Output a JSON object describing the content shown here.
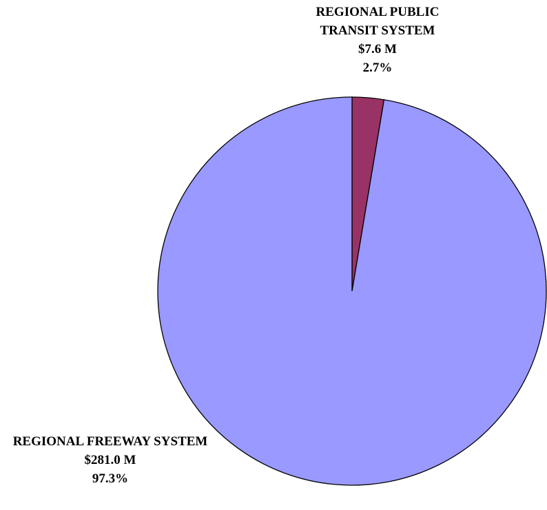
{
  "chart_data": {
    "type": "pie",
    "categories": [
      "REGIONAL PUBLIC TRANSIT SYSTEM",
      "REGIONAL FREEWAY SYSTEM"
    ],
    "values": [
      7.6,
      281.0
    ],
    "value_labels": [
      "$7.6 M",
      "$281.0 M"
    ],
    "percents": [
      2.7,
      97.3
    ],
    "percent_labels": [
      "2.7%",
      "97.3%"
    ],
    "colors": [
      "#993366",
      "#9999ff"
    ],
    "start_angle": 0,
    "direction": "clockwise"
  }
}
